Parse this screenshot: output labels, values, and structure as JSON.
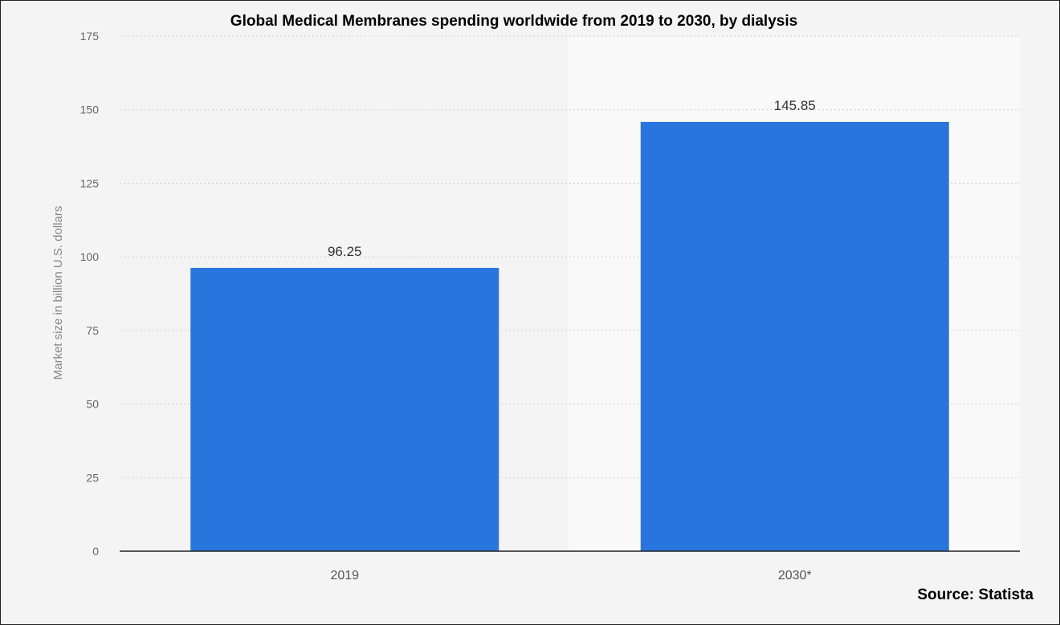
{
  "chart_data": {
    "type": "bar",
    "title": "Global Medical Membranes spending worldwide from 2019 to 2030, by dialysis",
    "categories": [
      "2019",
      "2030*"
    ],
    "values": [
      96.25,
      145.85
    ],
    "data_labels": [
      "96.25",
      "145.85"
    ],
    "xlabel": "",
    "ylabel": "Market size in billion U.S. dollars",
    "ylim": [
      0,
      175
    ],
    "yticks": [
      "0",
      "25",
      "50",
      "75",
      "100",
      "125",
      "150",
      "175"
    ],
    "grid": true,
    "bar_color": "#2876dd",
    "source": "Source: Statista"
  }
}
